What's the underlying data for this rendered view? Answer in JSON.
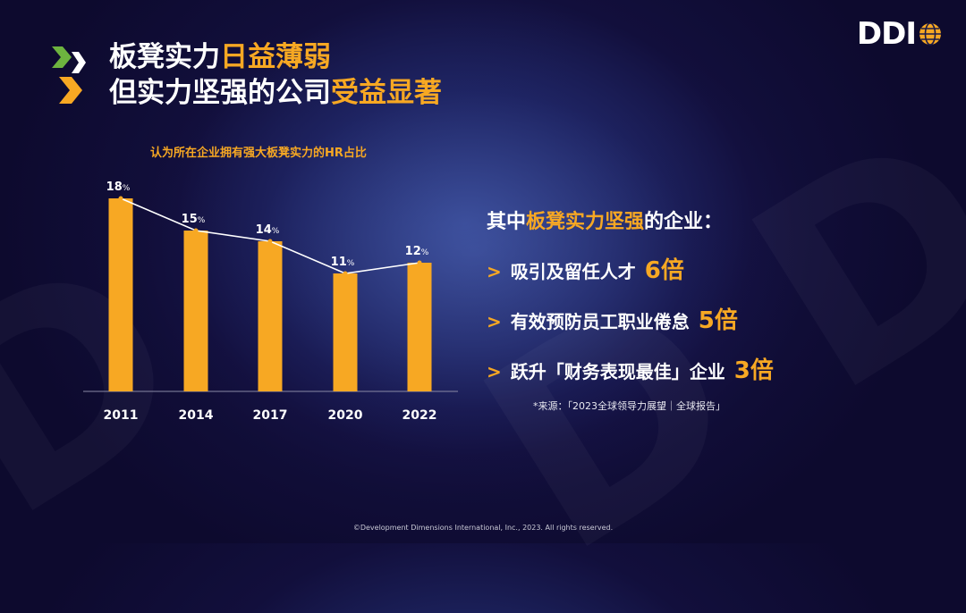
{
  "brand": {
    "logo_text": "DDI",
    "accent": "#f7a823",
    "green": "#6db33f"
  },
  "title": {
    "line1_plain": "板凳实力",
    "line1_highlight": "日益薄弱",
    "line2_plain": "但实力坚强的公司",
    "line2_highlight": "受益显著"
  },
  "chart_data": {
    "type": "bar",
    "title": "认为所在企业拥有强大板凳实力的HR占比",
    "categories": [
      "2011",
      "2014",
      "2017",
      "2020",
      "2022"
    ],
    "values": [
      18,
      15,
      14,
      11,
      12
    ],
    "value_labels": [
      "18",
      "15",
      "14",
      "11",
      "12"
    ],
    "unit": "%",
    "overlay_line": true,
    "ylim": [
      0,
      20
    ],
    "colors": {
      "bar": "#f7a823",
      "line": "#ffffff",
      "marker": "#f7a823"
    }
  },
  "benefits": {
    "heading_plain1": "其中",
    "heading_highlight": "板凳实力坚强",
    "heading_plain2": "的企业：",
    "chevron": ">",
    "items": [
      {
        "text": "吸引及留任人才",
        "multiplier": "6倍"
      },
      {
        "text": "有效预防员工职业倦怠",
        "multiplier": "5倍"
      },
      {
        "text": "跃升「财务表现最佳」企业",
        "multiplier": "3倍"
      }
    ],
    "source": "*来源：「2023全球领导力展望｜全球报告」"
  },
  "footer": {
    "copyright": "©Development Dimensions International, Inc., 2023. All rights reserved."
  }
}
